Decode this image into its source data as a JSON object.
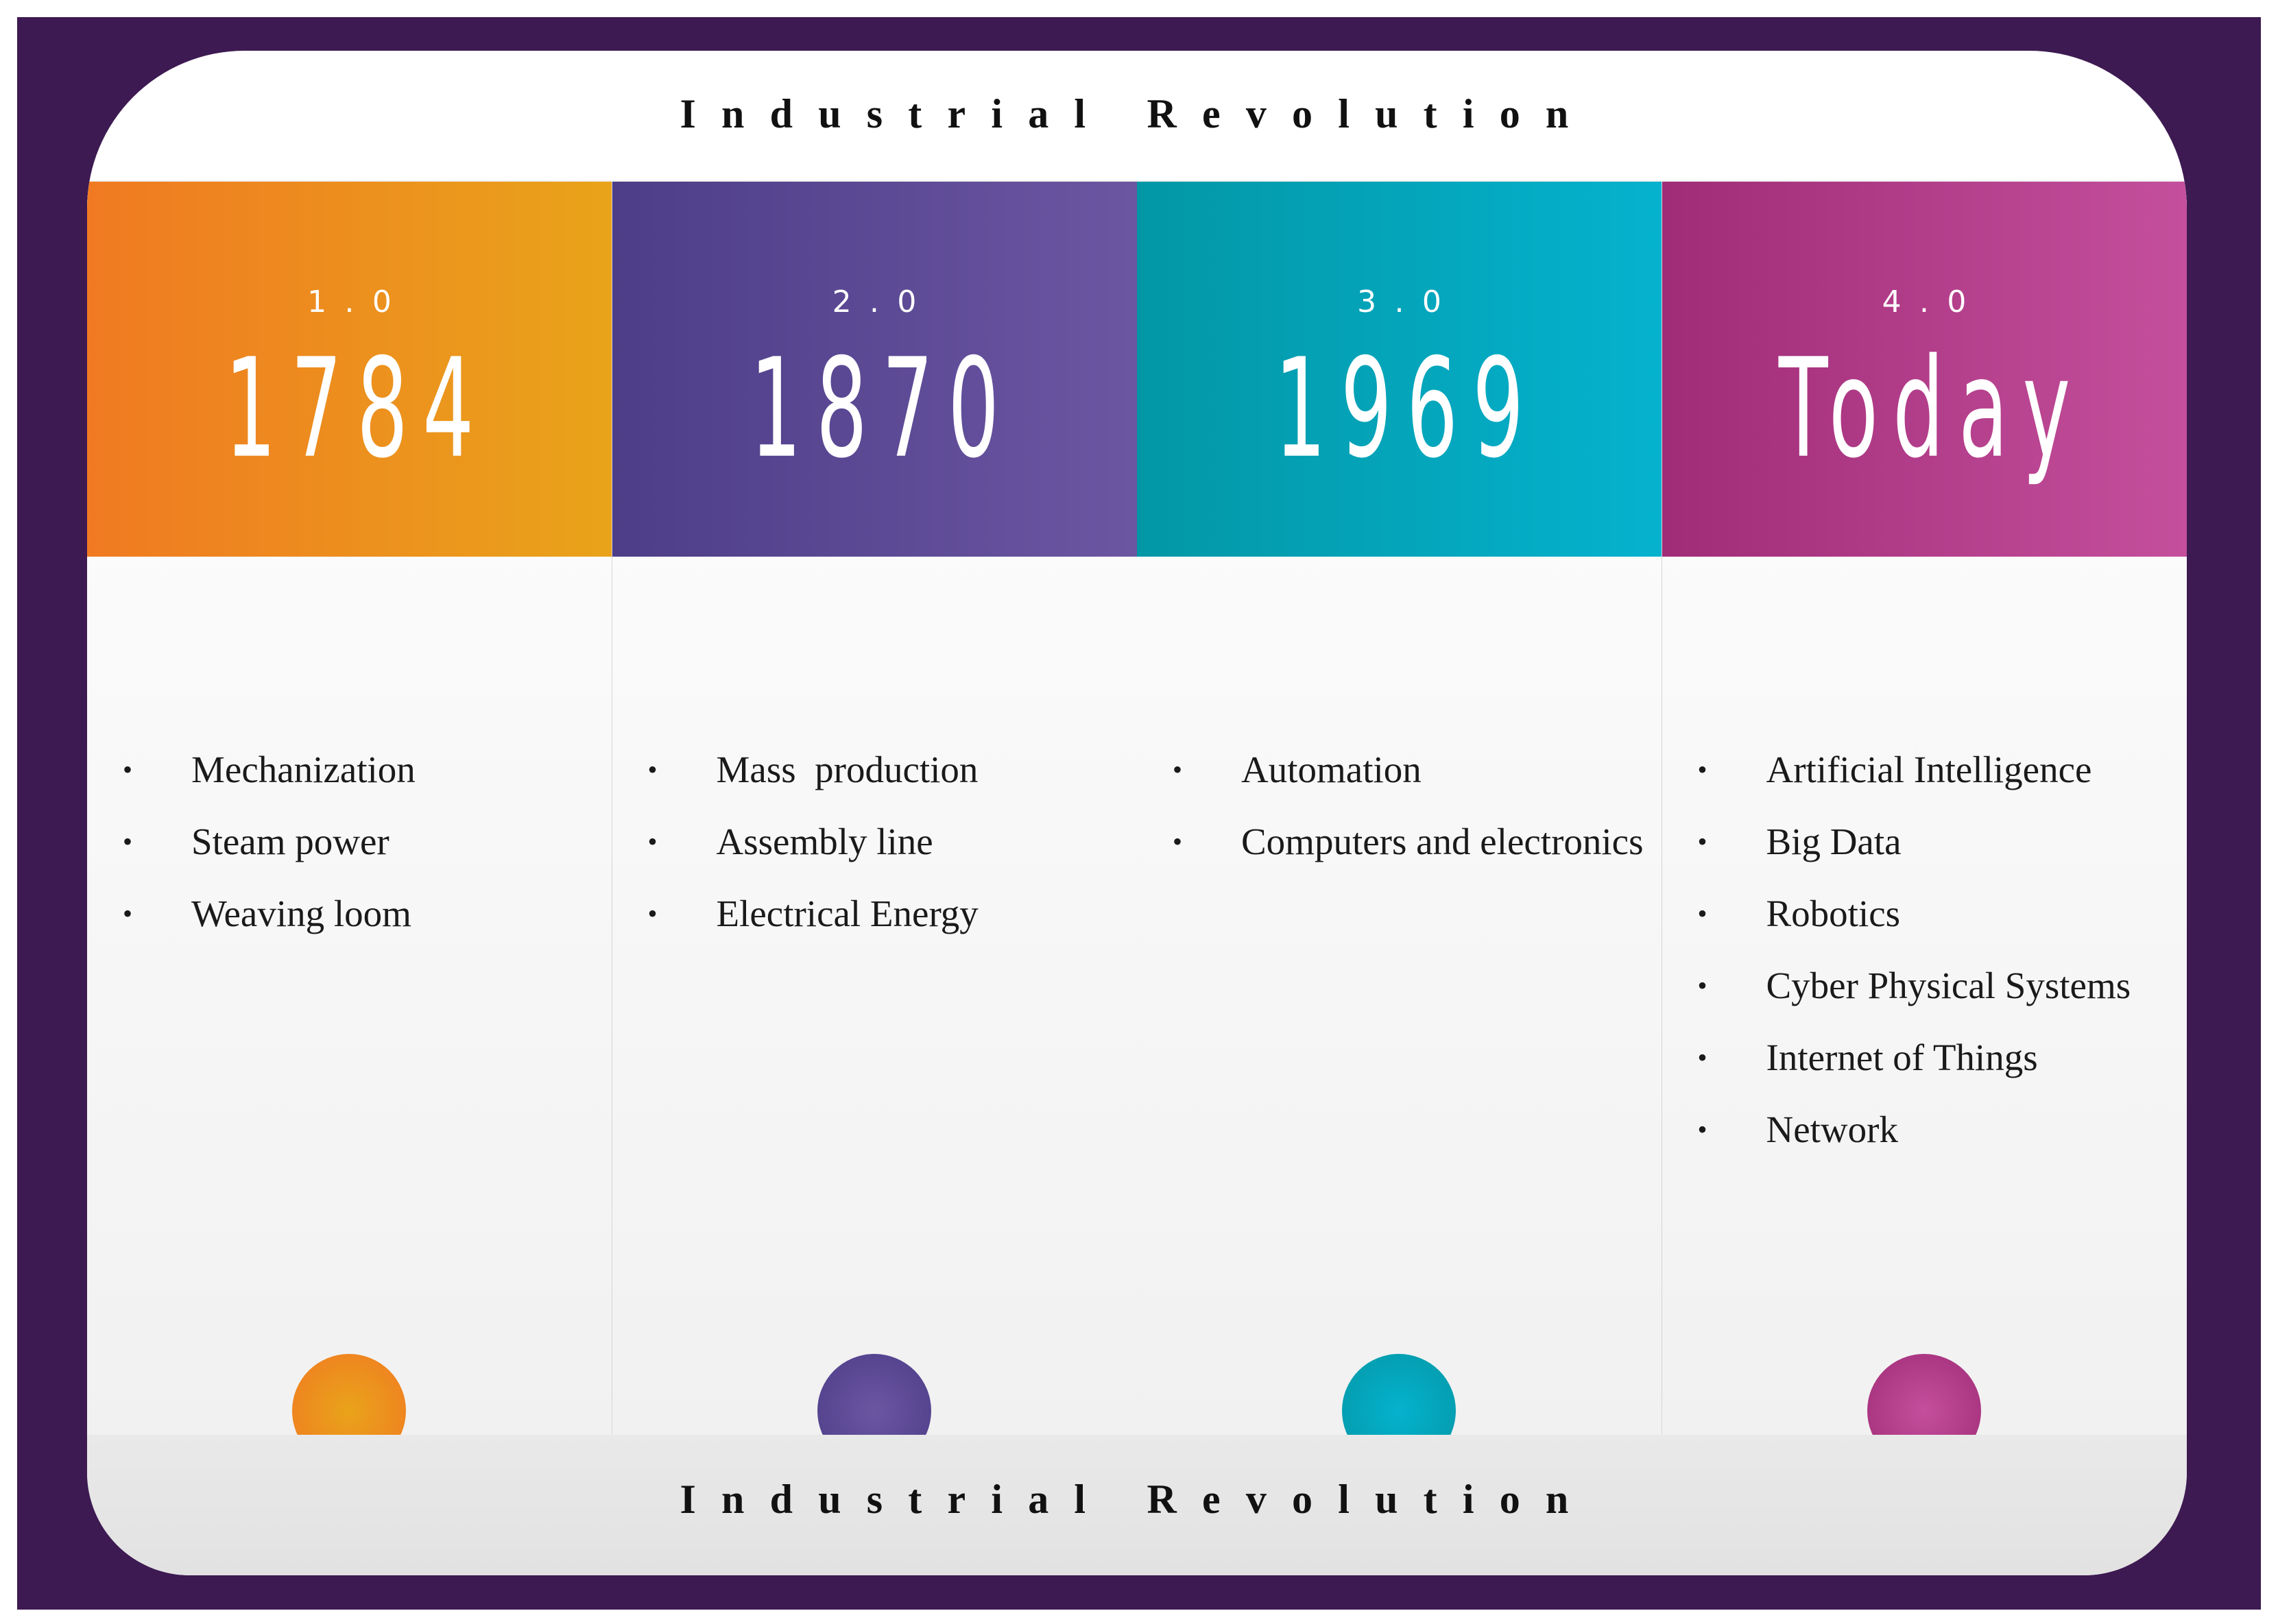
{
  "header": {
    "title": "Industrial Revolution"
  },
  "columns": [
    {
      "version": "1.0",
      "year": "1784",
      "items": [
        "Mechanization",
        "Steam power",
        "Weaving loom"
      ]
    },
    {
      "version": "2.0",
      "year": "1870",
      "items": [
        "Mass  production",
        "Assembly line",
        "Electrical Energy"
      ]
    },
    {
      "version": "3.0",
      "year": "1969",
      "items": [
        "Automation",
        "Computers and electronics"
      ]
    },
    {
      "version": "4.0",
      "year": "Today",
      "items": [
        "Artificial Intelligence",
        "Big Data",
        "Robotics",
        "Cyber Physical Systems",
        "Internet of Things",
        "Network"
      ]
    }
  ],
  "footer": {
    "title": "Industrial Revolution"
  }
}
